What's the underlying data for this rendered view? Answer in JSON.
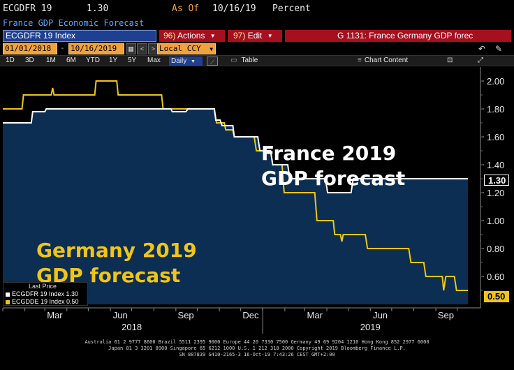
{
  "ticker": {
    "symbol": "ECGDFR 19",
    "value": "1.30",
    "as_of_label": "As Of",
    "as_of_date": "10/16/19",
    "unit": "Percent"
  },
  "subtitle": "France GDP Economic Forecast",
  "toolbar": {
    "index_field": "ECGDFR 19 Index",
    "actions_num": "96)",
    "actions_label": "Actions",
    "edit_num": "97)",
    "edit_label": "Edit",
    "page_title": "G 1131: France Germany GDP forec"
  },
  "dates": {
    "start": "01/01/2018",
    "separator": "-",
    "end": "10/16/2019",
    "currency": "Local CCY"
  },
  "periods": {
    "p1d": "1D",
    "p3d": "3D",
    "p1m": "1M",
    "p6m": "6M",
    "pytd": "YTD",
    "p1y": "1Y",
    "p5y": "5Y",
    "pmax": "Max",
    "frequency": "Daily",
    "table_label": "Table",
    "chart_content_label": "Chart Content"
  },
  "legend": {
    "title": "Last Price",
    "items": [
      {
        "label": "ECGDFR 19 Index 1.30",
        "color": "#ffffff"
      },
      {
        "label": "ECGDDE 19 Index 0.50",
        "color": "#f0c419"
      }
    ]
  },
  "last_price_tags": {
    "france": "1.30",
    "germany": "0.50"
  },
  "annotations": {
    "france_line1": "France 2019",
    "france_line2": "GDP forecast",
    "germany_line1": "Germany 2019",
    "germany_line2": "GDP forecast"
  },
  "chart_data": {
    "type": "line",
    "title": "",
    "ylim": [
      0.4,
      2.1
    ],
    "xlim": [
      "2018-01-01",
      "2019-10-16"
    ],
    "y_ticks": [
      "2.00",
      "1.80",
      "1.60",
      "1.40",
      "1.20",
      "1.00",
      "0.80",
      "0.60"
    ],
    "x_tick_labels": [
      "Mar",
      "Jun",
      "Sep",
      "Dec",
      "Mar",
      "Jun",
      "Sep"
    ],
    "year_labels": [
      "2018",
      "2019"
    ],
    "grid": false,
    "legend": "bottom-left",
    "series": [
      {
        "name": "ECGDFR 19 Index",
        "color": "#ffffff",
        "fill": "#0b2e52",
        "points": [
          [
            "2018-01-01",
            1.7
          ],
          [
            "2018-02-10",
            1.7
          ],
          [
            "2018-02-12",
            1.78
          ],
          [
            "2018-03-01",
            1.78
          ],
          [
            "2018-03-03",
            1.8
          ],
          [
            "2018-08-25",
            1.8
          ],
          [
            "2018-08-27",
            1.78
          ],
          [
            "2018-09-15",
            1.78
          ],
          [
            "2018-09-18",
            1.8
          ],
          [
            "2018-10-25",
            1.8
          ],
          [
            "2018-10-27",
            1.72
          ],
          [
            "2018-11-02",
            1.72
          ],
          [
            "2018-11-05",
            1.68
          ],
          [
            "2018-11-20",
            1.68
          ],
          [
            "2018-11-22",
            1.6
          ],
          [
            "2018-12-25",
            1.6
          ],
          [
            "2018-12-28",
            1.5
          ],
          [
            "2019-01-12",
            1.5
          ],
          [
            "2019-01-15",
            1.4
          ],
          [
            "2019-02-05",
            1.4
          ],
          [
            "2019-02-08",
            1.3
          ],
          [
            "2019-03-30",
            1.3
          ],
          [
            "2019-04-02",
            1.2
          ],
          [
            "2019-05-05",
            1.2
          ],
          [
            "2019-05-08",
            1.3
          ],
          [
            "2019-10-16",
            1.3
          ]
        ]
      },
      {
        "name": "ECGDDE 19 Index",
        "color": "#f0c419",
        "points": [
          [
            "2018-01-01",
            1.8
          ],
          [
            "2018-01-28",
            1.8
          ],
          [
            "2018-01-30",
            1.9
          ],
          [
            "2018-03-10",
            1.9
          ],
          [
            "2018-03-12",
            1.95
          ],
          [
            "2018-03-14",
            1.9
          ],
          [
            "2018-05-10",
            1.9
          ],
          [
            "2018-05-12",
            2.0
          ],
          [
            "2018-06-10",
            2.0
          ],
          [
            "2018-06-12",
            1.9
          ],
          [
            "2018-08-12",
            1.9
          ],
          [
            "2018-08-14",
            1.8
          ],
          [
            "2018-10-25",
            1.8
          ],
          [
            "2018-10-28",
            1.7
          ],
          [
            "2018-11-08",
            1.7
          ],
          [
            "2018-11-10",
            1.65
          ],
          [
            "2018-11-20",
            1.65
          ],
          [
            "2018-11-22",
            1.6
          ],
          [
            "2018-12-20",
            1.6
          ],
          [
            "2018-12-23",
            1.5
          ],
          [
            "2019-01-12",
            1.5
          ],
          [
            "2019-01-15",
            1.4
          ],
          [
            "2019-01-28",
            1.4
          ],
          [
            "2019-01-31",
            1.2
          ],
          [
            "2019-03-15",
            1.2
          ],
          [
            "2019-03-18",
            1.0
          ],
          [
            "2019-04-10",
            1.0
          ],
          [
            "2019-04-12",
            0.9
          ],
          [
            "2019-04-20",
            0.9
          ],
          [
            "2019-04-22",
            0.85
          ],
          [
            "2019-04-24",
            0.9
          ],
          [
            "2019-05-25",
            0.9
          ],
          [
            "2019-05-28",
            0.8
          ],
          [
            "2019-07-25",
            0.8
          ],
          [
            "2019-07-28",
            0.7
          ],
          [
            "2019-08-15",
            0.7
          ],
          [
            "2019-08-18",
            0.6
          ],
          [
            "2019-09-10",
            0.6
          ],
          [
            "2019-09-12",
            0.5
          ],
          [
            "2019-09-15",
            0.6
          ],
          [
            "2019-09-27",
            0.6
          ],
          [
            "2019-09-30",
            0.5
          ],
          [
            "2019-10-16",
            0.5
          ]
        ]
      }
    ]
  },
  "footer": {
    "line1": "Australia 61 2 9777 8600 Brazil 5511 2395 9000 Europe 44 20 7330 7500 Germany 49 69 9204 1210 Hong Kong 852 2977 6000",
    "line2": "Japan 81 3 3201 8900        Singapore 65 6212 1000        U.S. 1 212 318 2000        Copyright 2019 Bloomberg Finance L.P.",
    "line3": "SN 887839 G410-2165-3 16-Oct-19  7:43:26 CEST GMT+2:00"
  }
}
